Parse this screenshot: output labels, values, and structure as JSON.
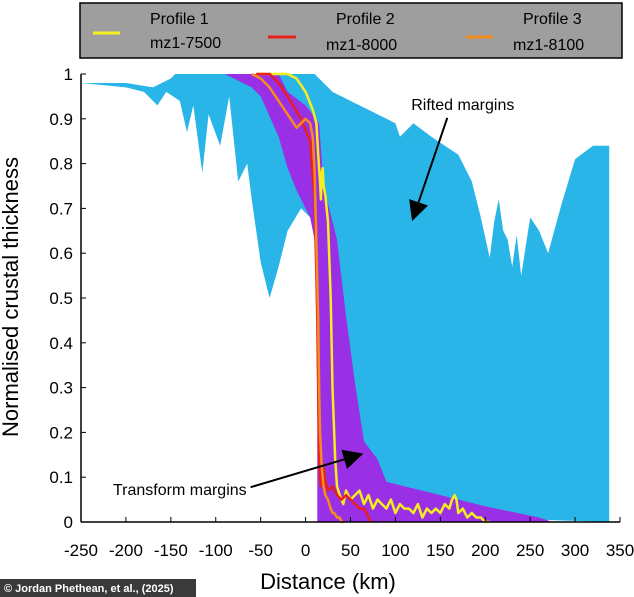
{
  "chart_data": {
    "type": "area",
    "xlabel": "Distance (km)",
    "ylabel": "Normalised crustal thickness",
    "xlim": [
      -250,
      350
    ],
    "ylim": [
      0,
      1
    ],
    "x_ticks": [
      -250,
      -200,
      -150,
      -100,
      -50,
      0,
      50,
      100,
      150,
      200,
      250,
      300,
      350
    ],
    "y_ticks": [
      0,
      0.1,
      0.2,
      0.3,
      0.4,
      0.5,
      0.6,
      0.7,
      0.8,
      0.9,
      1
    ],
    "grid": false,
    "legend_position": "top",
    "colors": {
      "rifted": "#29b5e8",
      "transform": "#9a30e6",
      "profile1": "#f5ee1e",
      "profile2": "#e8201b",
      "profile3": "#f58a1f",
      "legend_bg": "#9e9e9e",
      "copyright_bg": "#3a3a3a"
    },
    "legend": [
      {
        "label": "Profile 1",
        "sublabel": "mz1-7500",
        "color": "#f5ee1e"
      },
      {
        "label": "Profile 2",
        "sublabel": "mz1-8000",
        "color": "#e8201b"
      },
      {
        "label": "Profile 3",
        "sublabel": "mz1-8100",
        "color": "#f58a1f"
      }
    ],
    "annotations": [
      {
        "text": "Rifted margins",
        "x": 175,
        "y": 0.92,
        "arrow_to": [
          120,
          0.68
        ]
      },
      {
        "text": "Transform margins",
        "x": -140,
        "y": 0.06,
        "arrow_to": [
          60,
          0.15
        ]
      }
    ],
    "areas": [
      {
        "name": "Rifted margins",
        "color": "#29b5e8",
        "upper": [
          [
            -250,
            0.98
          ],
          [
            -200,
            0.98
          ],
          [
            -170,
            0.97
          ],
          [
            -150,
            0.99
          ],
          [
            -145,
            1.0
          ],
          [
            -20,
            1.0
          ],
          [
            10,
            1.0
          ],
          [
            30,
            0.96
          ],
          [
            60,
            0.93
          ],
          [
            80,
            0.91
          ],
          [
            100,
            0.89
          ],
          [
            105,
            0.86
          ],
          [
            120,
            0.89
          ],
          [
            140,
            0.86
          ],
          [
            155,
            0.84
          ],
          [
            170,
            0.82
          ],
          [
            185,
            0.76
          ],
          [
            195,
            0.68
          ],
          [
            205,
            0.59
          ],
          [
            210,
            0.67
          ],
          [
            215,
            0.72
          ],
          [
            220,
            0.65
          ],
          [
            225,
            0.63
          ],
          [
            230,
            0.57
          ],
          [
            235,
            0.64
          ],
          [
            240,
            0.55
          ],
          [
            250,
            0.68
          ],
          [
            260,
            0.65
          ],
          [
            270,
            0.6
          ],
          [
            285,
            0.71
          ],
          [
            300,
            0.81
          ],
          [
            320,
            0.84
          ],
          [
            338,
            0.84
          ],
          [
            338,
            0.0
          ]
        ],
        "lower": [
          [
            -250,
            0.98
          ],
          [
            -200,
            0.97
          ],
          [
            -180,
            0.96
          ],
          [
            -165,
            0.93
          ],
          [
            -155,
            0.96
          ],
          [
            -140,
            0.94
          ],
          [
            -132,
            0.87
          ],
          [
            -125,
            0.93
          ],
          [
            -115,
            0.78
          ],
          [
            -108,
            0.91
          ],
          [
            -95,
            0.84
          ],
          [
            -85,
            0.95
          ],
          [
            -75,
            0.76
          ],
          [
            -65,
            0.8
          ],
          [
            -60,
            0.72
          ],
          [
            -50,
            0.58
          ],
          [
            -40,
            0.5
          ],
          [
            -30,
            0.57
          ],
          [
            -20,
            0.65
          ],
          [
            -5,
            0.7
          ],
          [
            10,
            0.67
          ],
          [
            25,
            0.53
          ],
          [
            45,
            0.32
          ],
          [
            60,
            0.18
          ],
          [
            75,
            0.1
          ],
          [
            100,
            0.05
          ],
          [
            150,
            0.03
          ],
          [
            200,
            0.015
          ],
          [
            260,
            0.005
          ],
          [
            338,
            0.0
          ]
        ]
      },
      {
        "name": "Transform margins",
        "color": "#9a30e6",
        "upper": [
          [
            -90,
            1.0
          ],
          [
            -30,
            1.0
          ],
          [
            -20,
            0.96
          ],
          [
            0,
            0.93
          ],
          [
            15,
            0.89
          ],
          [
            20,
            0.75
          ],
          [
            25,
            0.71
          ],
          [
            35,
            0.63
          ],
          [
            45,
            0.46
          ],
          [
            55,
            0.31
          ],
          [
            65,
            0.18
          ],
          [
            80,
            0.14
          ],
          [
            90,
            0.09
          ],
          [
            110,
            0.08
          ],
          [
            150,
            0.06
          ],
          [
            200,
            0.035
          ],
          [
            260,
            0.01
          ],
          [
            275,
            0.0
          ]
        ],
        "lower": [
          [
            -90,
            1.0
          ],
          [
            -60,
            0.97
          ],
          [
            -50,
            0.95
          ],
          [
            -30,
            0.86
          ],
          [
            -20,
            0.79
          ],
          [
            -10,
            0.74
          ],
          [
            5,
            0.68
          ],
          [
            10,
            0.63
          ],
          [
            12,
            0.5
          ],
          [
            13,
            0.2
          ],
          [
            13,
            0.0
          ],
          [
            275,
            0.0
          ]
        ]
      }
    ],
    "series": [
      {
        "name": "Profile 1 mz1-7500",
        "color": "#f5ee1e",
        "x": [
          -55,
          -20,
          -10,
          0,
          8,
          12,
          14,
          16,
          17,
          18,
          19,
          20,
          22,
          25,
          28,
          30,
          33,
          35,
          38,
          42,
          45,
          50,
          55,
          60,
          65,
          70,
          75,
          80,
          85,
          90,
          95,
          100,
          105,
          110,
          115,
          120,
          125,
          130,
          135,
          140,
          145,
          150,
          155,
          160,
          163,
          166,
          168,
          170,
          175,
          180,
          185,
          190,
          195,
          200,
          205
        ],
        "y": [
          1.0,
          1.0,
          0.99,
          0.96,
          0.92,
          0.89,
          0.82,
          0.76,
          0.72,
          0.78,
          0.79,
          0.75,
          0.73,
          0.67,
          0.5,
          0.3,
          0.14,
          0.08,
          0.06,
          0.04,
          0.07,
          0.05,
          0.06,
          0.07,
          0.04,
          0.06,
          0.03,
          0.05,
          0.04,
          0.03,
          0.05,
          0.02,
          0.04,
          0.03,
          0.03,
          0.02,
          0.04,
          0.01,
          0.03,
          0.02,
          0.03,
          0.02,
          0.04,
          0.03,
          0.05,
          0.06,
          0.05,
          0.02,
          0.03,
          0.01,
          0.02,
          0.01,
          0.01,
          0.0,
          0.0
        ]
      },
      {
        "name": "Profile 2 mz1-8000",
        "color": "#e8201b",
        "x": [
          -55,
          -40,
          -30,
          -20,
          -5,
          5,
          10,
          12,
          13,
          14,
          15,
          16,
          17,
          18,
          20,
          22,
          25,
          30,
          35,
          40,
          45,
          50,
          55,
          60,
          65,
          68,
          70,
          72
        ],
        "y": [
          1.0,
          1.0,
          0.98,
          0.95,
          0.9,
          0.85,
          0.72,
          0.55,
          0.45,
          0.3,
          0.15,
          0.1,
          0.08,
          0.1,
          0.12,
          0.09,
          0.07,
          0.08,
          0.06,
          0.05,
          0.06,
          0.05,
          0.04,
          0.03,
          0.03,
          0.02,
          0.01,
          0.0
        ]
      },
      {
        "name": "Profile 3 mz1-8100",
        "color": "#f58a1f",
        "x": [
          -60,
          -50,
          -40,
          -30,
          -20,
          -10,
          0,
          5,
          8,
          10,
          12,
          14,
          15,
          16,
          18,
          20,
          22,
          25,
          28,
          30,
          32,
          35,
          38,
          40,
          42
        ],
        "y": [
          1.0,
          0.99,
          0.97,
          0.94,
          0.91,
          0.88,
          0.9,
          0.89,
          0.86,
          0.78,
          0.62,
          0.45,
          0.3,
          0.2,
          0.12,
          0.08,
          0.06,
          0.05,
          0.03,
          0.02,
          0.02,
          0.01,
          0.01,
          0.0,
          0.0
        ]
      }
    ]
  },
  "copyright": "© Jordan Phethean, et al., (2025)"
}
